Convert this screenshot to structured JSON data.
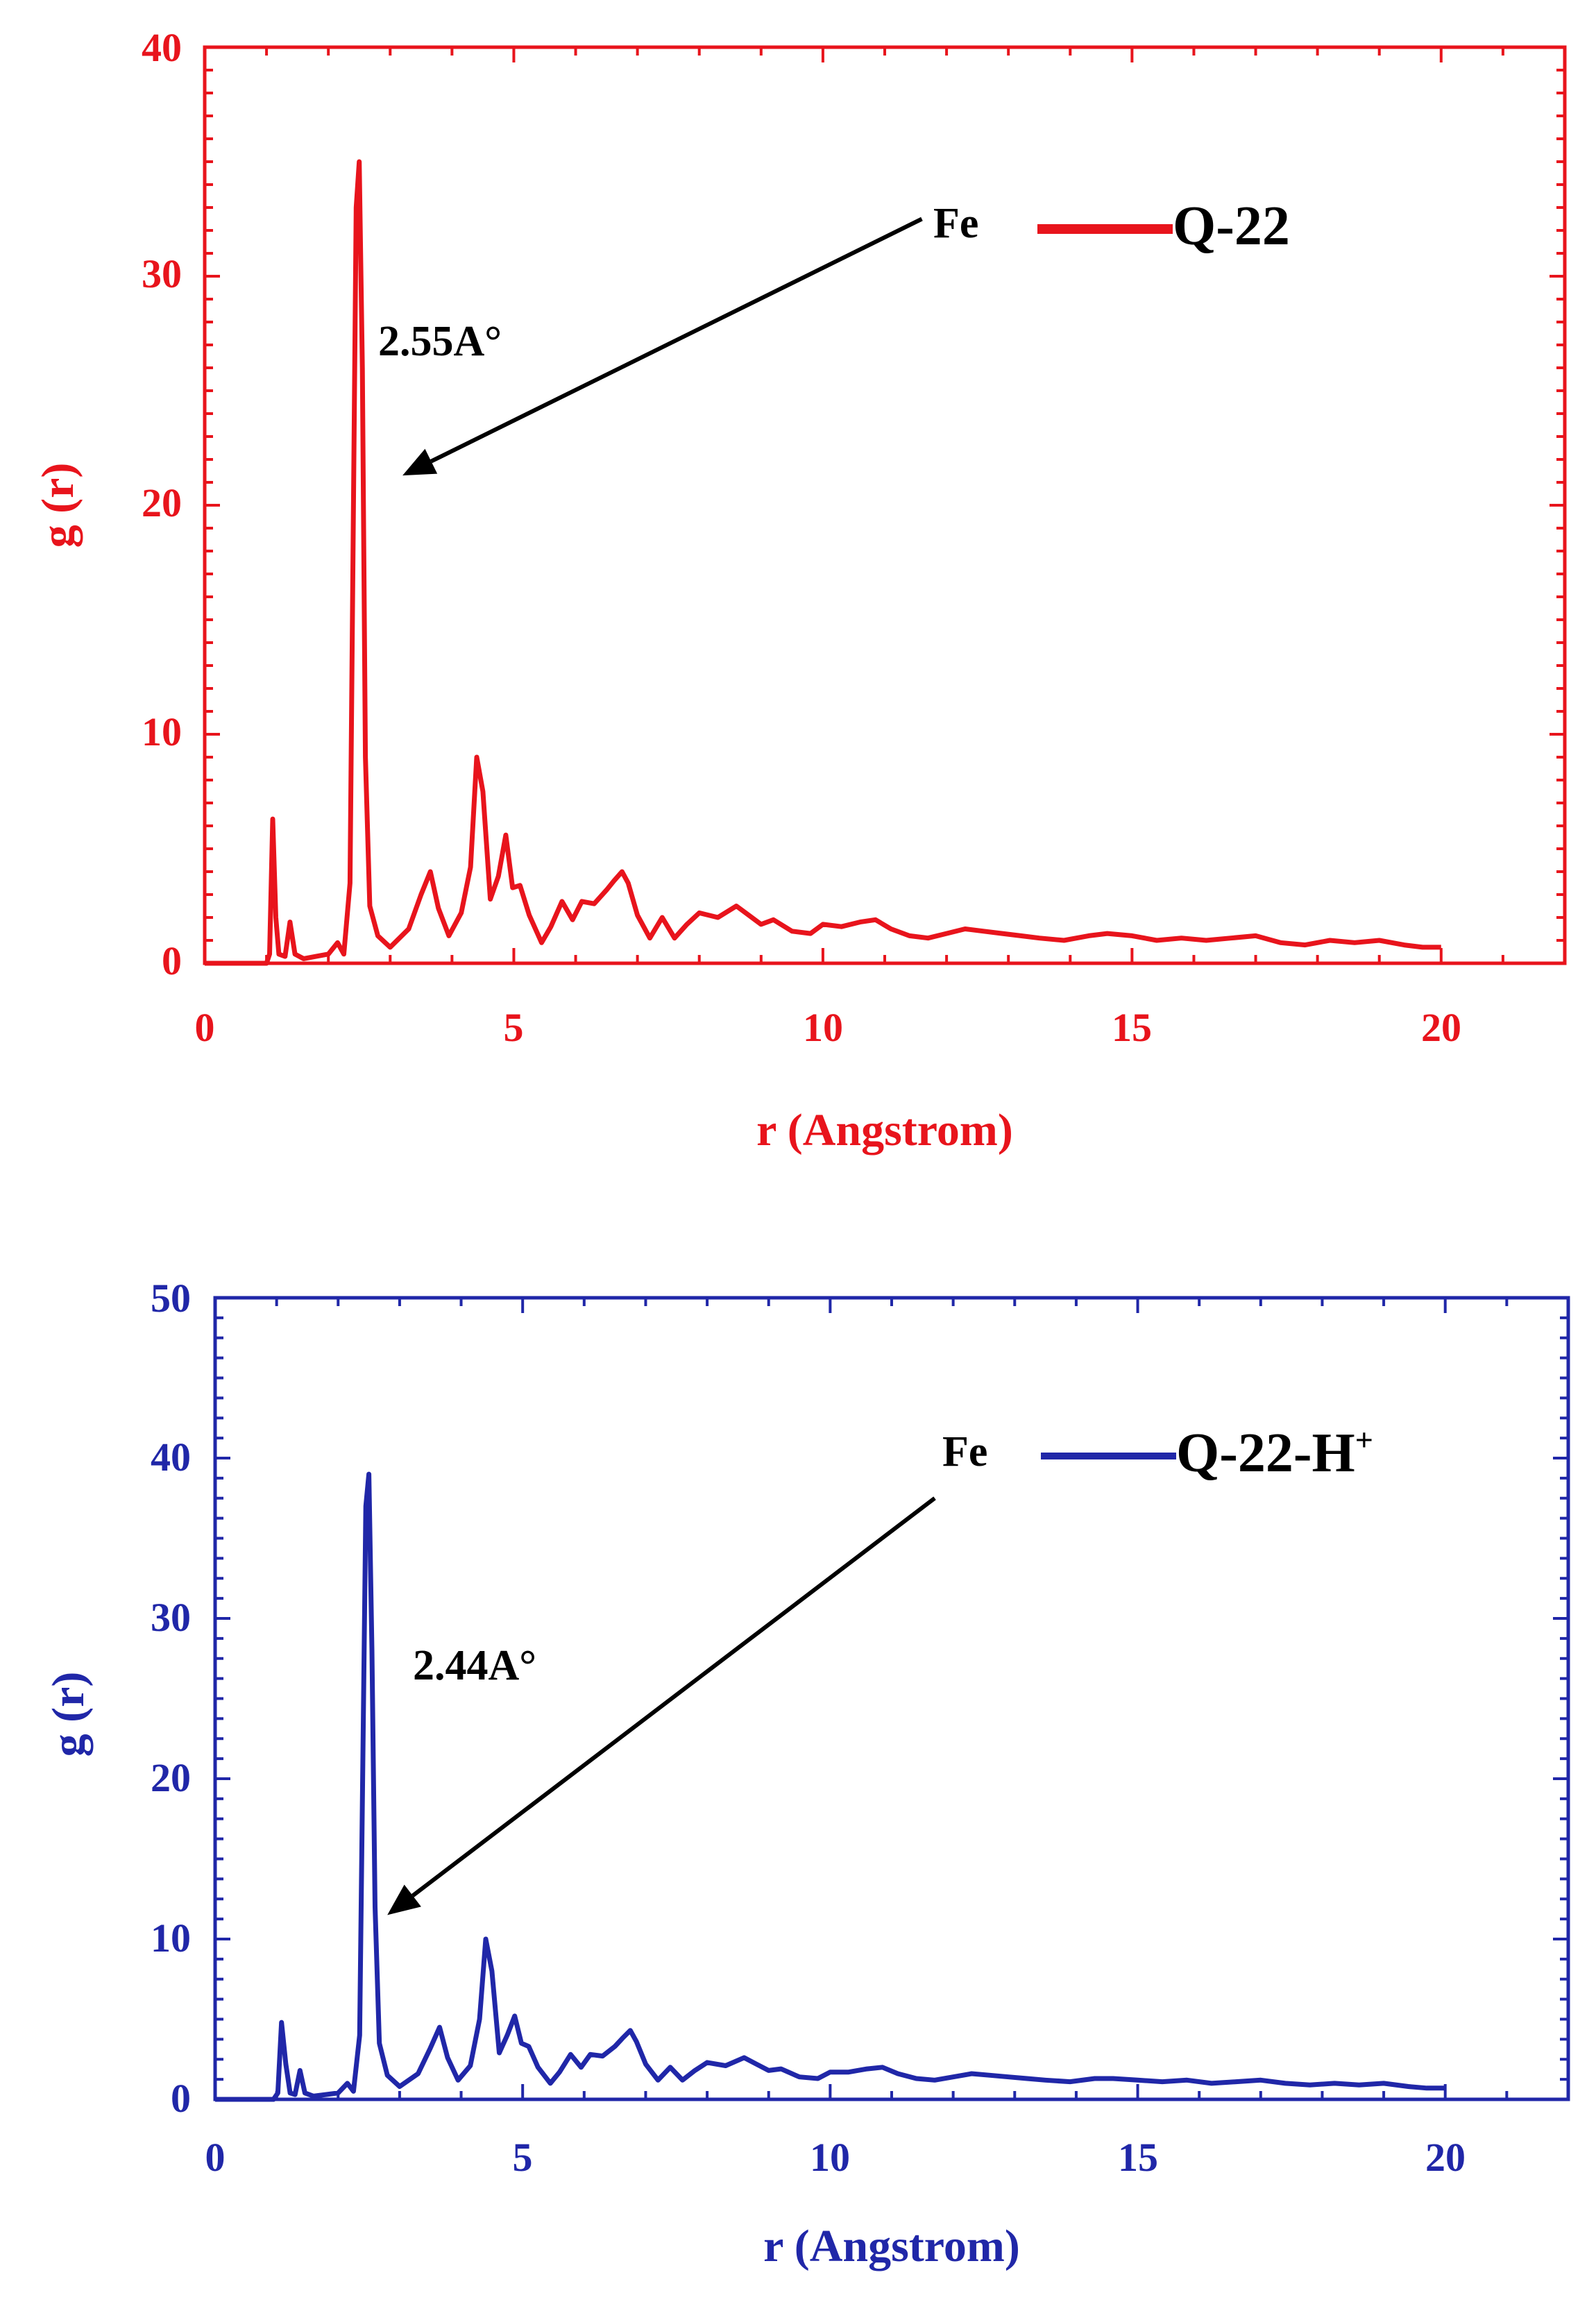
{
  "chart_data": [
    {
      "type": "line",
      "color": "#e8141c",
      "xlabel": "r (Angstrom)",
      "ylabel": "g (r)",
      "xlim": [
        0,
        22
      ],
      "ylim": [
        0,
        40
      ],
      "xticks": [
        "0",
        "5",
        "10",
        "15",
        "20"
      ],
      "yticks": [
        "0",
        "10",
        "20",
        "30",
        "40"
      ],
      "legend": {
        "prefix": "Fe",
        "label": "Q-22",
        "sup": "",
        "placement": "top-right"
      },
      "annotation": {
        "text": "2.55A°",
        "arrow_from": [
          11.6,
          32.5
        ],
        "arrow_to": [
          3.2,
          21.3
        ]
      },
      "grid": false,
      "series": [
        {
          "name": "Q-22",
          "x": [
            0,
            1.0,
            1.05,
            1.1,
            1.15,
            1.2,
            1.3,
            1.38,
            1.46,
            1.6,
            1.8,
            2.0,
            2.15,
            2.25,
            2.35,
            2.45,
            2.5,
            2.55,
            2.6,
            2.67,
            2.8,
            3.0,
            3.3,
            3.5,
            3.65,
            3.78,
            3.95,
            4.15,
            4.3,
            4.4,
            4.5,
            4.62,
            4.75,
            4.87,
            4.98,
            5.1,
            5.25,
            5.45,
            5.6,
            5.78,
            5.95,
            6.1,
            6.3,
            6.5,
            6.62,
            6.75,
            6.85,
            7.0,
            7.2,
            7.4,
            7.6,
            7.8,
            8.0,
            8.3,
            8.6,
            8.8,
            9.0,
            9.2,
            9.5,
            9.8,
            10.0,
            10.3,
            10.6,
            10.85,
            11.1,
            11.4,
            11.7,
            12.0,
            12.3,
            12.6,
            12.9,
            13.2,
            13.5,
            13.9,
            14.3,
            14.6,
            15.0,
            15.4,
            15.8,
            16.2,
            16.6,
            17.0,
            17.4,
            17.8,
            18.2,
            18.6,
            19.0,
            19.4,
            19.7,
            20.0
          ],
          "y": [
            0,
            0,
            0.4,
            6.3,
            2.0,
            0.4,
            0.3,
            1.8,
            0.4,
            0.2,
            0.3,
            0.4,
            0.9,
            0.4,
            3.5,
            33.0,
            35.0,
            26.0,
            9.0,
            2.5,
            1.2,
            0.7,
            1.5,
            3.0,
            4.0,
            2.4,
            1.2,
            2.2,
            4.2,
            9.0,
            7.5,
            2.8,
            3.8,
            5.6,
            3.3,
            3.4,
            2.1,
            0.9,
            1.6,
            2.7,
            1.9,
            2.7,
            2.6,
            3.2,
            3.6,
            4.0,
            3.5,
            2.1,
            1.1,
            2.0,
            1.1,
            1.7,
            2.2,
            2.0,
            2.5,
            2.1,
            1.7,
            1.9,
            1.4,
            1.3,
            1.7,
            1.6,
            1.8,
            1.9,
            1.5,
            1.2,
            1.1,
            1.3,
            1.5,
            1.4,
            1.3,
            1.2,
            1.1,
            1.0,
            1.2,
            1.3,
            1.2,
            1.0,
            1.1,
            1.0,
            1.1,
            1.2,
            0.9,
            0.8,
            1.0,
            0.9,
            1.0,
            0.8,
            0.7,
            0.7
          ]
        }
      ]
    },
    {
      "type": "line",
      "color": "#2027a8",
      "xlabel": "r (Angstrom)",
      "ylabel": "g (r)",
      "xlim": [
        0,
        22
      ],
      "ylim": [
        0,
        50
      ],
      "xticks": [
        "0",
        "5",
        "10",
        "15",
        "20"
      ],
      "yticks": [
        "0",
        "10",
        "20",
        "30",
        "40",
        "50"
      ],
      "legend": {
        "prefix": "Fe",
        "label": "Q-22-H",
        "sup": "+",
        "placement": "top-right"
      },
      "annotation": {
        "text": "2.44A°",
        "arrow_from": [
          11.7,
          37.5
        ],
        "arrow_to": [
          2.8,
          11.5
        ]
      },
      "grid": false,
      "series": [
        {
          "name": "Q-22-H+",
          "x": [
            0,
            0.95,
            1.02,
            1.08,
            1.15,
            1.22,
            1.3,
            1.38,
            1.46,
            1.6,
            1.8,
            2.0,
            2.15,
            2.25,
            2.35,
            2.45,
            2.5,
            2.55,
            2.6,
            2.67,
            2.8,
            3.0,
            3.3,
            3.5,
            3.65,
            3.78,
            3.95,
            4.15,
            4.3,
            4.4,
            4.5,
            4.62,
            4.75,
            4.87,
            4.98,
            5.1,
            5.25,
            5.45,
            5.6,
            5.78,
            5.95,
            6.1,
            6.3,
            6.5,
            6.62,
            6.75,
            6.85,
            7.0,
            7.2,
            7.4,
            7.6,
            7.8,
            8.0,
            8.3,
            8.6,
            8.8,
            9.0,
            9.2,
            9.5,
            9.8,
            10.0,
            10.3,
            10.6,
            10.85,
            11.1,
            11.4,
            11.7,
            12.0,
            12.3,
            12.6,
            12.9,
            13.2,
            13.5,
            13.9,
            14.3,
            14.6,
            15.0,
            15.4,
            15.8,
            16.2,
            16.6,
            17.0,
            17.4,
            17.8,
            18.2,
            18.6,
            19.0,
            19.4,
            19.7,
            20.0
          ],
          "y": [
            0,
            0,
            0.4,
            4.8,
            2.2,
            0.4,
            0.3,
            1.8,
            0.4,
            0.2,
            0.3,
            0.4,
            1.0,
            0.5,
            4.0,
            37.0,
            39.0,
            28.0,
            12.0,
            3.5,
            1.5,
            0.8,
            1.6,
            3.2,
            4.5,
            2.6,
            1.2,
            2.1,
            5.0,
            10.0,
            8.0,
            2.9,
            4.0,
            5.2,
            3.5,
            3.3,
            2.0,
            1.0,
            1.7,
            2.8,
            2.0,
            2.8,
            2.7,
            3.3,
            3.8,
            4.3,
            3.6,
            2.2,
            1.2,
            2.0,
            1.2,
            1.8,
            2.3,
            2.1,
            2.6,
            2.2,
            1.8,
            1.9,
            1.4,
            1.3,
            1.7,
            1.7,
            1.9,
            2.0,
            1.6,
            1.3,
            1.2,
            1.4,
            1.6,
            1.5,
            1.4,
            1.3,
            1.2,
            1.1,
            1.3,
            1.3,
            1.2,
            1.1,
            1.2,
            1.0,
            1.1,
            1.2,
            1.0,
            0.9,
            1.0,
            0.9,
            1.0,
            0.8,
            0.7,
            0.7
          ]
        }
      ]
    }
  ]
}
